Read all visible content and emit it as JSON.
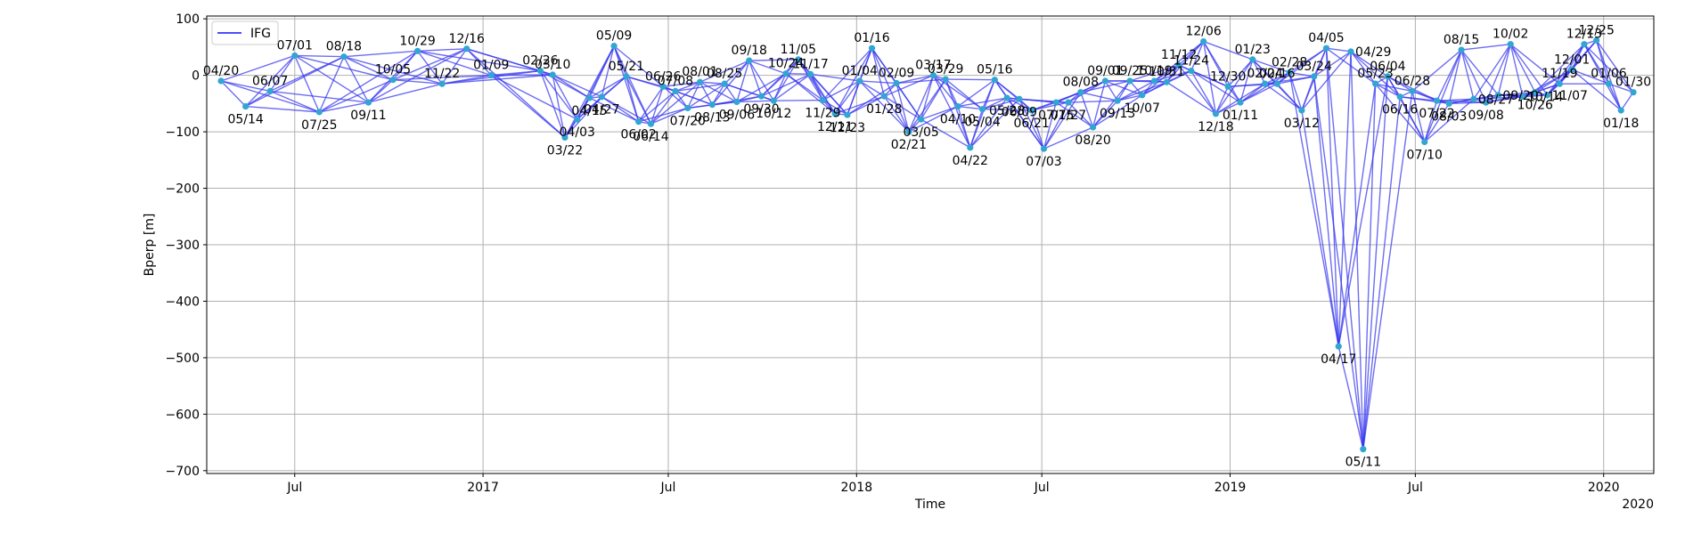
{
  "chart_data": {
    "type": "network",
    "xlabel": "Time",
    "ylabel": "Bperp [m]",
    "x_offset_label": "2020",
    "x_ticks": [
      {
        "date": "2016-07-01",
        "label": "Jul"
      },
      {
        "date": "2017-01-01",
        "label": "2017"
      },
      {
        "date": "2017-07-01",
        "label": "Jul"
      },
      {
        "date": "2018-01-01",
        "label": "2018"
      },
      {
        "date": "2018-07-01",
        "label": "Jul"
      },
      {
        "date": "2019-01-01",
        "label": "2019"
      },
      {
        "date": "2019-07-01",
        "label": "Jul"
      },
      {
        "date": "2020-01-01",
        "label": "2020"
      }
    ],
    "y_ticks": [
      100,
      0,
      -100,
      -200,
      -300,
      -400,
      -500,
      -600,
      -700
    ],
    "ylim": [
      -705,
      105
    ],
    "xlim": [
      "2016-04-06",
      "2020-02-19"
    ],
    "grid": true,
    "legend": {
      "position": "top-left",
      "entries": [
        {
          "label": "IFG",
          "color": "#4d4df5"
        }
      ]
    },
    "colors": {
      "edge": "#3434ee",
      "node": "#31a6d3",
      "grid": "#b0b0b0"
    },
    "nodes": [
      {
        "date": "2016-04-20",
        "bperp": -10,
        "label": "04/20",
        "pos": "above"
      },
      {
        "date": "2016-05-14",
        "bperp": -55,
        "label": "05/14",
        "pos": "below"
      },
      {
        "date": "2016-06-07",
        "bperp": -28,
        "label": "06/07",
        "pos": "above"
      },
      {
        "date": "2016-07-01",
        "bperp": 35,
        "label": "07/01",
        "pos": "above"
      },
      {
        "date": "2016-07-25",
        "bperp": -65,
        "label": "07/25",
        "pos": "below"
      },
      {
        "date": "2016-08-18",
        "bperp": 33,
        "label": "08/18",
        "pos": "above"
      },
      {
        "date": "2016-09-11",
        "bperp": -48,
        "label": "09/11",
        "pos": "below"
      },
      {
        "date": "2016-10-05",
        "bperp": -8,
        "label": "10/05",
        "pos": "above"
      },
      {
        "date": "2016-10-29",
        "bperp": 43,
        "label": "10/29",
        "pos": "above"
      },
      {
        "date": "2016-11-22",
        "bperp": -15,
        "label": "11/22",
        "pos": "above"
      },
      {
        "date": "2016-12-16",
        "bperp": 47,
        "label": "12/16",
        "pos": "above"
      },
      {
        "date": "2017-01-09",
        "bperp": 0,
        "label": "01/09",
        "pos": "above"
      },
      {
        "date": "2017-02-26",
        "bperp": 8,
        "label": "02/26",
        "pos": "above"
      },
      {
        "date": "2017-03-10",
        "bperp": 1,
        "label": "03/10",
        "pos": "above"
      },
      {
        "date": "2017-03-22",
        "bperp": -110,
        "label": "03/22",
        "pos": "below"
      },
      {
        "date": "2017-04-03",
        "bperp": -78,
        "label": "04/03",
        "pos": "below"
      },
      {
        "date": "2017-04-15",
        "bperp": -40,
        "label": "04/15",
        "pos": "below"
      },
      {
        "date": "2017-04-27",
        "bperp": -38,
        "label": "04/27",
        "pos": "below"
      },
      {
        "date": "2017-05-09",
        "bperp": 52,
        "label": "05/09",
        "pos": "above"
      },
      {
        "date": "2017-05-21",
        "bperp": -2,
        "label": "05/21",
        "pos": "above"
      },
      {
        "date": "2017-06-02",
        "bperp": -82,
        "label": "06/02",
        "pos": "below"
      },
      {
        "date": "2017-06-14",
        "bperp": -86,
        "label": "06/14",
        "pos": "below"
      },
      {
        "date": "2017-06-26",
        "bperp": -20,
        "label": "06/26",
        "pos": "above"
      },
      {
        "date": "2017-07-08",
        "bperp": -28,
        "label": "07/08",
        "pos": "above"
      },
      {
        "date": "2017-07-20",
        "bperp": -58,
        "label": "07/20",
        "pos": "below"
      },
      {
        "date": "2017-08-01",
        "bperp": -12,
        "label": "08/01",
        "pos": "above"
      },
      {
        "date": "2017-08-13",
        "bperp": -52,
        "label": "08/13",
        "pos": "below"
      },
      {
        "date": "2017-08-25",
        "bperp": -15,
        "label": "08/25",
        "pos": "above"
      },
      {
        "date": "2017-09-06",
        "bperp": -47,
        "label": "09/06",
        "pos": "below"
      },
      {
        "date": "2017-09-18",
        "bperp": 26,
        "label": "09/18",
        "pos": "above"
      },
      {
        "date": "2017-09-30",
        "bperp": -37,
        "label": "09/30",
        "pos": "below"
      },
      {
        "date": "2017-10-12",
        "bperp": -45,
        "label": "10/12",
        "pos": "below"
      },
      {
        "date": "2017-10-24",
        "bperp": 3,
        "label": "10/24",
        "pos": "above"
      },
      {
        "date": "2017-11-05",
        "bperp": 28,
        "label": "11/05",
        "pos": "above"
      },
      {
        "date": "2017-11-17",
        "bperp": 2,
        "label": "11/17",
        "pos": "above"
      },
      {
        "date": "2017-11-29",
        "bperp": -44,
        "label": "11/29",
        "pos": "below"
      },
      {
        "date": "2017-12-11",
        "bperp": -68,
        "label": "12/11",
        "pos": "below"
      },
      {
        "date": "2017-12-23",
        "bperp": -70,
        "label": "12/23",
        "pos": "below"
      },
      {
        "date": "2018-01-04",
        "bperp": -10,
        "label": "01/04",
        "pos": "above"
      },
      {
        "date": "2018-01-16",
        "bperp": 48,
        "label": "01/16",
        "pos": "above"
      },
      {
        "date": "2018-01-28",
        "bperp": -37,
        "label": "01/28",
        "pos": "below"
      },
      {
        "date": "2018-02-09",
        "bperp": -14,
        "label": "02/09",
        "pos": "above"
      },
      {
        "date": "2018-02-21",
        "bperp": -100,
        "label": "02/21",
        "pos": "below"
      },
      {
        "date": "2018-03-05",
        "bperp": -78,
        "label": "03/05",
        "pos": "below"
      },
      {
        "date": "2018-03-17",
        "bperp": 0,
        "label": "03/17",
        "pos": "above"
      },
      {
        "date": "2018-03-29",
        "bperp": -7,
        "label": "03/29",
        "pos": "above"
      },
      {
        "date": "2018-04-10",
        "bperp": -55,
        "label": "04/10",
        "pos": "below"
      },
      {
        "date": "2018-04-22",
        "bperp": -128,
        "label": "04/22",
        "pos": "below"
      },
      {
        "date": "2018-05-04",
        "bperp": -60,
        "label": "05/04",
        "pos": "below"
      },
      {
        "date": "2018-05-16",
        "bperp": -8,
        "label": "05/16",
        "pos": "above"
      },
      {
        "date": "2018-05-28",
        "bperp": -40,
        "label": "05/28",
        "pos": "below"
      },
      {
        "date": "2018-06-09",
        "bperp": -42,
        "label": "06/09",
        "pos": "below"
      },
      {
        "date": "2018-06-21",
        "bperp": -62,
        "label": "06/21",
        "pos": "below"
      },
      {
        "date": "2018-07-03",
        "bperp": -130,
        "label": "07/03",
        "pos": "below"
      },
      {
        "date": "2018-07-15",
        "bperp": -48,
        "label": "07/15",
        "pos": "below"
      },
      {
        "date": "2018-07-27",
        "bperp": -48,
        "label": "07/27",
        "pos": "below"
      },
      {
        "date": "2018-08-08",
        "bperp": -30,
        "label": "08/08",
        "pos": "above"
      },
      {
        "date": "2018-08-20",
        "bperp": -92,
        "label": "08/20",
        "pos": "below"
      },
      {
        "date": "2018-09-01",
        "bperp": -10,
        "label": "09/01",
        "pos": "above"
      },
      {
        "date": "2018-09-13",
        "bperp": -45,
        "label": "09/13",
        "pos": "below"
      },
      {
        "date": "2018-09-25",
        "bperp": -10,
        "label": "09/25",
        "pos": "above"
      },
      {
        "date": "2018-10-07",
        "bperp": -35,
        "label": "10/07",
        "pos": "below"
      },
      {
        "date": "2018-10-19",
        "bperp": -10,
        "label": "10/19",
        "pos": "above"
      },
      {
        "date": "2018-10-31",
        "bperp": -12,
        "label": "10/31",
        "pos": "above"
      },
      {
        "date": "2018-11-12",
        "bperp": 18,
        "label": "11/12",
        "pos": "above"
      },
      {
        "date": "2018-11-24",
        "bperp": 8,
        "label": "11/24",
        "pos": "above"
      },
      {
        "date": "2018-12-06",
        "bperp": 60,
        "label": "12/06",
        "pos": "above"
      },
      {
        "date": "2018-12-18",
        "bperp": -68,
        "label": "12/18",
        "pos": "below"
      },
      {
        "date": "2018-12-30",
        "bperp": -20,
        "label": "12/30",
        "pos": "above"
      },
      {
        "date": "2019-01-11",
        "bperp": -48,
        "label": "01/11",
        "pos": "below"
      },
      {
        "date": "2019-01-23",
        "bperp": 28,
        "label": "01/23",
        "pos": "above"
      },
      {
        "date": "2019-02-04",
        "bperp": -15,
        "label": "02/04",
        "pos": "above"
      },
      {
        "date": "2019-02-16",
        "bperp": -15,
        "label": "02/16",
        "pos": "above"
      },
      {
        "date": "2019-02-28",
        "bperp": 5,
        "label": "02/28",
        "pos": "above"
      },
      {
        "date": "2019-03-12",
        "bperp": -62,
        "label": "03/12",
        "pos": "below"
      },
      {
        "date": "2019-03-24",
        "bperp": -2,
        "label": "03/24",
        "pos": "above"
      },
      {
        "date": "2019-04-05",
        "bperp": 48,
        "label": "04/05",
        "pos": "above"
      },
      {
        "date": "2019-04-17",
        "bperp": -480,
        "label": "04/17",
        "pos": "below"
      },
      {
        "date": "2019-04-29",
        "bperp": 42,
        "label": "04/29",
        "pos": "right"
      },
      {
        "date": "2019-05-11",
        "bperp": -662,
        "label": "05/11",
        "pos": "below"
      },
      {
        "date": "2019-05-23",
        "bperp": -15,
        "label": "05/23",
        "pos": "above"
      },
      {
        "date": "2019-06-04",
        "bperp": -2,
        "label": "06/04",
        "pos": "above"
      },
      {
        "date": "2019-06-16",
        "bperp": -38,
        "label": "06/16",
        "pos": "below"
      },
      {
        "date": "2019-06-28",
        "bperp": -28,
        "label": "06/28",
        "pos": "above"
      },
      {
        "date": "2019-07-10",
        "bperp": -118,
        "label": "07/10",
        "pos": "below"
      },
      {
        "date": "2019-07-22",
        "bperp": -45,
        "label": "07/22",
        "pos": "below"
      },
      {
        "date": "2019-08-03",
        "bperp": -50,
        "label": "08/03",
        "pos": "below"
      },
      {
        "date": "2019-08-15",
        "bperp": 45,
        "label": "08/15",
        "pos": "above"
      },
      {
        "date": "2019-08-27",
        "bperp": -42,
        "label": "08/27",
        "pos": "right"
      },
      {
        "date": "2019-09-08",
        "bperp": -48,
        "label": "09/08",
        "pos": "below"
      },
      {
        "date": "2019-09-20",
        "bperp": -35,
        "label": "09/20",
        "pos": "right"
      },
      {
        "date": "2019-10-02",
        "bperp": 55,
        "label": "10/02",
        "pos": "above"
      },
      {
        "date": "2019-10-14",
        "bperp": -38,
        "label": "10/14",
        "pos": "right"
      },
      {
        "date": "2019-10-26",
        "bperp": -30,
        "label": "10/26",
        "pos": "below"
      },
      {
        "date": "2019-11-07",
        "bperp": -35,
        "label": "11/07",
        "pos": "right"
      },
      {
        "date": "2019-11-19",
        "bperp": -15,
        "label": "11/19",
        "pos": "above"
      },
      {
        "date": "2019-12-01",
        "bperp": 10,
        "label": "12/01",
        "pos": "above"
      },
      {
        "date": "2019-12-13",
        "bperp": 55,
        "label": "12/13",
        "pos": "above"
      },
      {
        "date": "2019-12-25",
        "bperp": 62,
        "label": "12/25",
        "pos": "above"
      },
      {
        "date": "2020-01-06",
        "bperp": -15,
        "label": "01/06",
        "pos": "above"
      },
      {
        "date": "2020-01-18",
        "bperp": -62,
        "label": "01/18",
        "pos": "below"
      },
      {
        "date": "2020-01-30",
        "bperp": -30,
        "label": "01/30",
        "pos": "above"
      }
    ]
  }
}
